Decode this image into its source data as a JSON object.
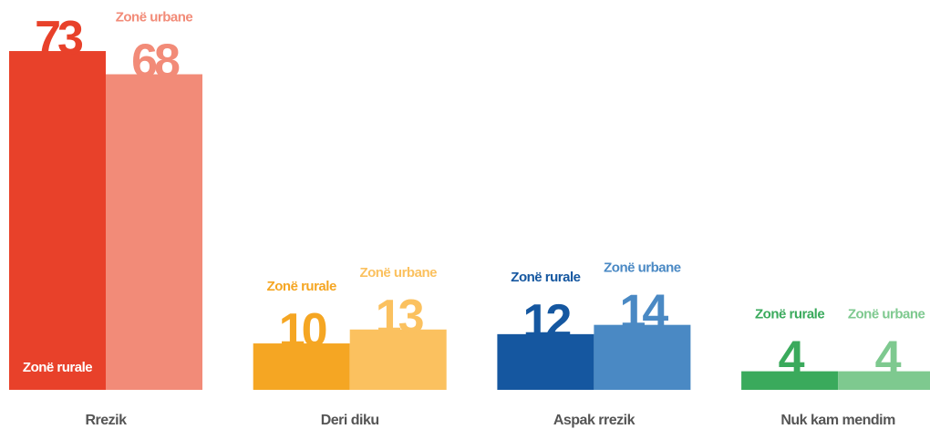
{
  "chart_data": {
    "type": "bar",
    "categories": [
      "Rrezik",
      "Deri diku",
      "Aspak rrezik",
      "Nuk kam mendim"
    ],
    "series": [
      {
        "name": "Zonë rurale",
        "colors": [
          "#e8412a",
          "#f5a623",
          "#1557a0",
          "#3aaa5c"
        ],
        "values": [
          73,
          10,
          12,
          4
        ]
      },
      {
        "name": "Zonë urbane",
        "colors": [
          "#f28b78",
          "#fbc15f",
          "#4a89c4",
          "#7ec98f"
        ],
        "values": [
          68,
          13,
          14,
          4
        ]
      }
    ],
    "ylim": [
      0,
      84
    ]
  }
}
